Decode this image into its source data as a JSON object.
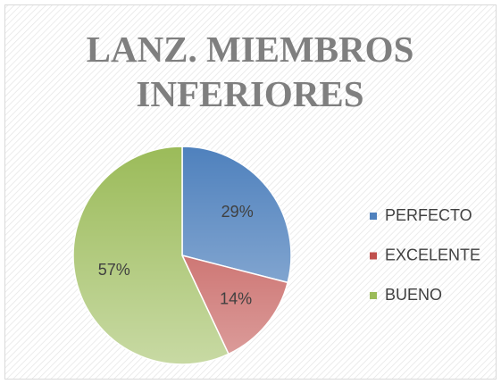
{
  "chart_data": {
    "type": "pie",
    "title": "LANZ. MIEMBROS INFERIORES",
    "categories": [
      "PERFECTO",
      "EXCELENTE",
      "BUENO"
    ],
    "values": [
      29,
      14,
      57
    ],
    "value_labels": [
      "29%",
      "14%",
      "57%"
    ],
    "colors": [
      "#4f81bd",
      "#c0504d",
      "#9bbb59"
    ],
    "legend": "right"
  }
}
